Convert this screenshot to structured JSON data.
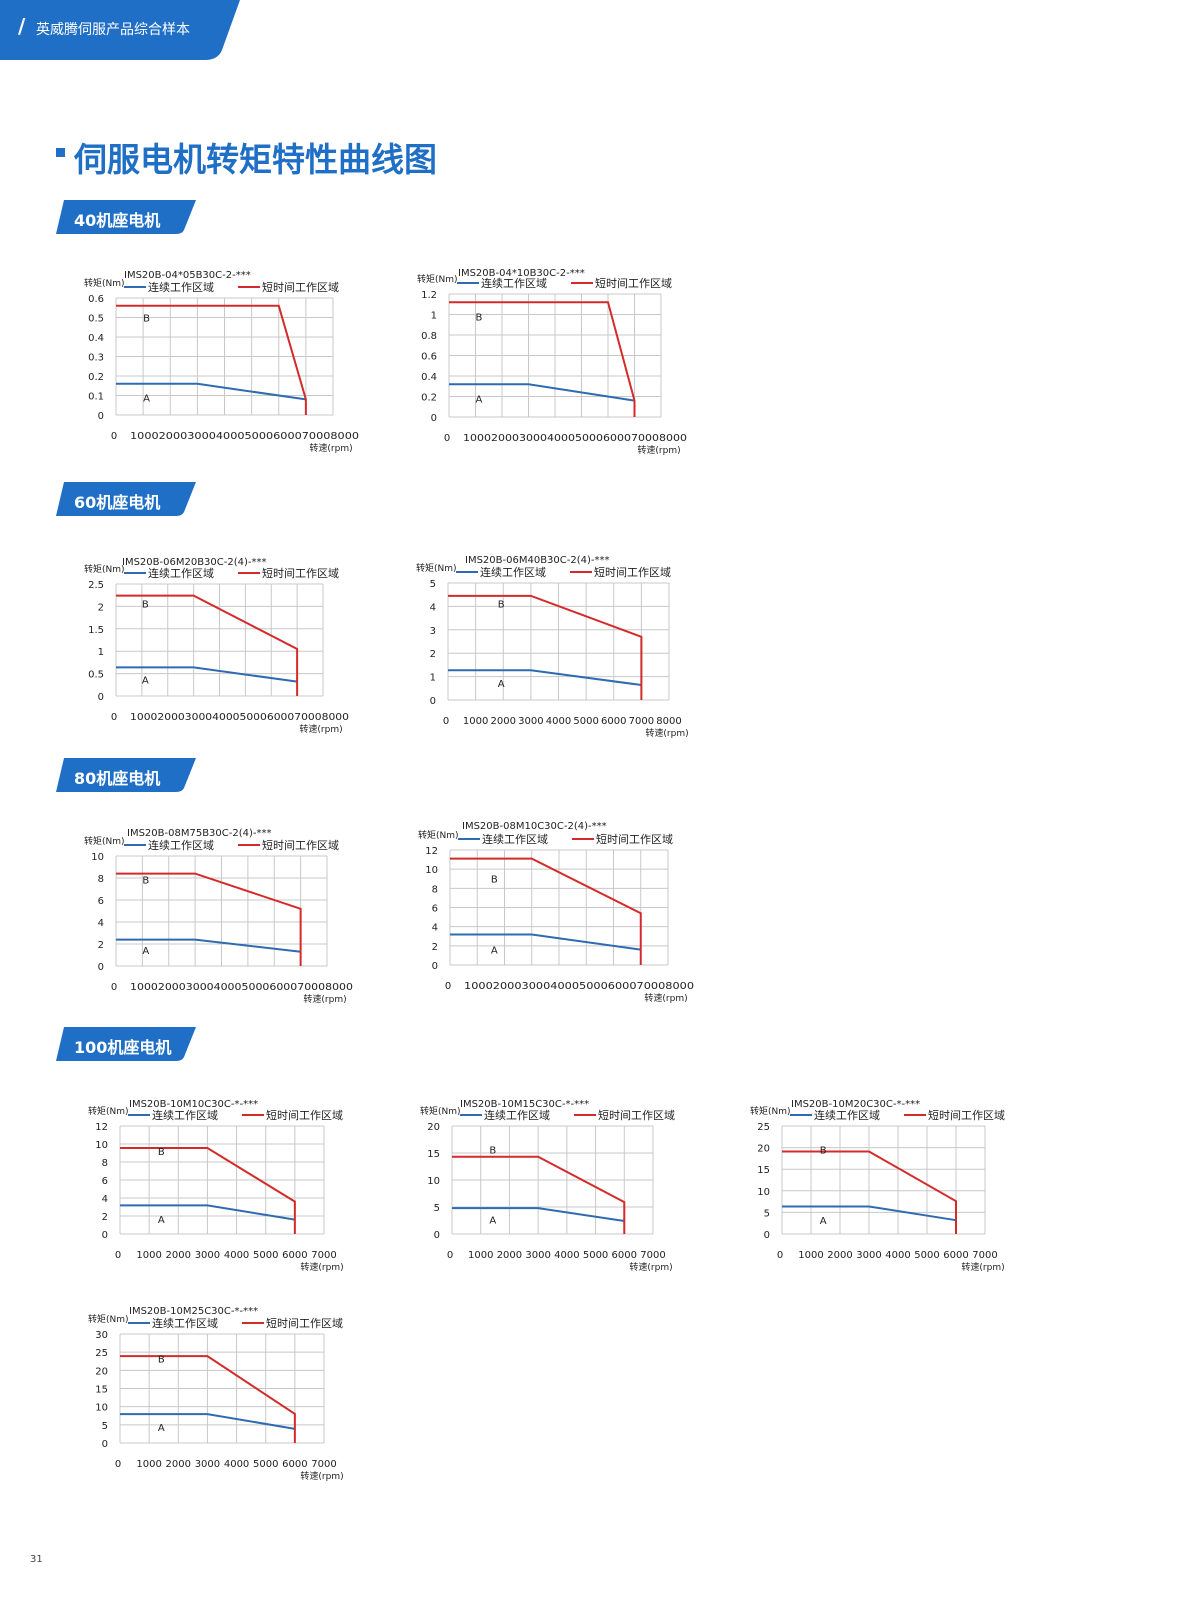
{
  "header": {
    "text": "英威腾伺服产品综合样本",
    "color": "#1f6fc6"
  },
  "page_title": "伺服电机转矩特性曲线图",
  "sections": [
    {
      "id": "s40",
      "label": "40机座电机"
    },
    {
      "id": "s60",
      "label": "60机座电机"
    },
    {
      "id": "s80",
      "label": "80机座电机"
    },
    {
      "id": "s100",
      "label": "100机座电机"
    }
  ],
  "page_number": "31",
  "colors": {
    "continuous": "#2e6bb0",
    "short": "#d42a2a",
    "grid": "#c8c8c8"
  },
  "chart_data": [
    {
      "type": "line",
      "title": "IMS20B-04*05B30C-2-***",
      "ylabel": "转矩(Nm)",
      "xlabel": "转速(rpm)",
      "legend": [
        "连续工作区域",
        "短时间工作区域"
      ],
      "legend_position": "top",
      "region_labels": [
        "A",
        "B"
      ],
      "xlim": [
        0,
        8000
      ],
      "ylim": [
        0,
        0.6
      ],
      "yticks": [
        0,
        0.1,
        0.2,
        0.3,
        0.4,
        0.5,
        0.6
      ],
      "ytick_labels": [
        "0",
        "0.1",
        "0.2",
        "0.3",
        "0.4",
        "0.5",
        "0.6"
      ],
      "xtick_labels": [
        "0",
        "1000",
        "2000",
        "3000",
        "4000",
        "5000",
        "6000",
        "7000",
        "8000"
      ],
      "xtick_style": "compact",
      "series": [
        {
          "name": "连续工作区域",
          "x": [
            0,
            3000,
            7000
          ],
          "y": [
            0.16,
            0.16,
            0.08
          ]
        },
        {
          "name": "短时间工作区域",
          "x": [
            0,
            6000,
            7000,
            7000
          ],
          "y": [
            0.56,
            0.56,
            0.08,
            0
          ]
        }
      ],
      "labelA": [
        1000,
        0.07
      ],
      "labelB": [
        1000,
        0.48
      ]
    },
    {
      "type": "line",
      "title": "IMS20B-04*10B30C-2-***",
      "ylabel": "转矩(Nm)",
      "xlabel": "转速(rpm)",
      "legend": [
        "连续工作区域",
        "短时间工作区域"
      ],
      "legend_position": "top",
      "region_labels": [
        "A",
        "B"
      ],
      "xlim": [
        0,
        8000
      ],
      "ylim": [
        0,
        1.2
      ],
      "yticks": [
        0,
        0.2,
        0.4,
        0.6,
        0.8,
        1,
        1.2
      ],
      "ytick_labels": [
        "0",
        "0.2",
        "0.4",
        "0.6",
        "0.8",
        "1",
        "1.2"
      ],
      "xtick_labels": [
        "0",
        "1000",
        "2000",
        "3000",
        "4000",
        "5000",
        "6000",
        "7000",
        "8000"
      ],
      "xtick_style": "compact",
      "series": [
        {
          "name": "连续工作区域",
          "x": [
            0,
            3000,
            7000
          ],
          "y": [
            0.32,
            0.32,
            0.16
          ]
        },
        {
          "name": "短时间工作区域",
          "x": [
            0,
            6000,
            7000,
            7000
          ],
          "y": [
            1.12,
            1.12,
            0.16,
            0
          ]
        }
      ],
      "labelA": [
        1000,
        0.14
      ],
      "labelB": [
        1000,
        0.94
      ]
    },
    {
      "type": "line",
      "title": "IMS20B-06M20B30C-2(4)-***",
      "ylabel": "转矩(Nm)",
      "xlabel": "转速(rpm)",
      "legend": [
        "连续工作区域",
        "短时间工作区域"
      ],
      "legend_position": "top",
      "region_labels": [
        "A",
        "B"
      ],
      "xlim": [
        0,
        8000
      ],
      "ylim": [
        0,
        2.5
      ],
      "yticks": [
        0,
        0.5,
        1,
        1.5,
        2,
        2.5
      ],
      "ytick_labels": [
        "0",
        "0.5",
        "1",
        "1.5",
        "2",
        "2.5"
      ],
      "xtick_labels": [
        "0",
        "1000",
        "2000",
        "3000",
        "4000",
        "5000",
        "6000",
        "7000",
        "8000"
      ],
      "xtick_style": "compact",
      "series": [
        {
          "name": "连续工作区域",
          "x": [
            0,
            3000,
            7000
          ],
          "y": [
            0.64,
            0.64,
            0.32
          ]
        },
        {
          "name": "短时间工作区域",
          "x": [
            0,
            3000,
            7000,
            7000
          ],
          "y": [
            2.24,
            2.24,
            1.05,
            0
          ]
        }
      ],
      "labelA": [
        1000,
        0.28
      ],
      "labelB": [
        1000,
        1.98
      ]
    },
    {
      "type": "line",
      "title": "IMS20B-06M40B30C-2(4)-***",
      "ylabel": "转矩(Nm)",
      "xlabel": "转速(rpm)",
      "legend": [
        "连续工作区域",
        "短时间工作区域"
      ],
      "legend_position": "top",
      "region_labels": [
        "A",
        "B"
      ],
      "xlim": [
        0,
        8000
      ],
      "ylim": [
        0,
        5
      ],
      "yticks": [
        0,
        1,
        2,
        3,
        4,
        5
      ],
      "ytick_labels": [
        "0",
        "1",
        "2",
        "3",
        "4",
        "5"
      ],
      "xtick_labels": [
        "0",
        "1000",
        "2000",
        "3000",
        "4000",
        "5000",
        "6000",
        "7000",
        "8000"
      ],
      "xtick_style": "spaced",
      "series": [
        {
          "name": "连续工作区域",
          "x": [
            0,
            3000,
            7000
          ],
          "y": [
            1.27,
            1.27,
            0.64
          ]
        },
        {
          "name": "短时间工作区域",
          "x": [
            0,
            3000,
            7000,
            7000
          ],
          "y": [
            4.45,
            4.45,
            2.7,
            0
          ]
        }
      ],
      "labelA": [
        1800,
        0.55
      ],
      "labelB": [
        1800,
        3.95
      ]
    },
    {
      "type": "line",
      "title": "IMS20B-08M75B30C-2(4)-***",
      "ylabel": "转矩(Nm)",
      "xlabel": "转速(rpm)",
      "legend": [
        "连续工作区域",
        "短时间工作区域"
      ],
      "legend_position": "top",
      "region_labels": [
        "A",
        "B"
      ],
      "xlim": [
        0,
        8000
      ],
      "ylim": [
        0,
        10
      ],
      "yticks": [
        0,
        2,
        4,
        6,
        8,
        10
      ],
      "ytick_labels": [
        "0",
        "2",
        "4",
        "6",
        "8",
        "10"
      ],
      "xtick_labels": [
        "0",
        "1000",
        "2000",
        "3000",
        "4000",
        "5000",
        "6000",
        "7000",
        "8000"
      ],
      "xtick_style": "compact",
      "series": [
        {
          "name": "连续工作区域",
          "x": [
            0,
            3000,
            7000
          ],
          "y": [
            2.4,
            2.4,
            1.3
          ]
        },
        {
          "name": "短时间工作区域",
          "x": [
            0,
            3000,
            7000,
            7000
          ],
          "y": [
            8.4,
            8.4,
            5.2,
            0
          ]
        }
      ],
      "labelA": [
        1000,
        1.1
      ],
      "labelB": [
        1000,
        7.5
      ]
    },
    {
      "type": "line",
      "title": "IMS20B-08M10C30C-2(4)-***",
      "ylabel": "转矩(Nm)",
      "xlabel": "转速(rpm)",
      "legend": [
        "连续工作区域",
        "短时间工作区域"
      ],
      "legend_position": "top",
      "region_labels": [
        "A",
        "B"
      ],
      "xlim": [
        0,
        8000
      ],
      "ylim": [
        0,
        12
      ],
      "yticks": [
        0,
        2,
        4,
        6,
        8,
        10,
        12
      ],
      "ytick_labels": [
        "0",
        "2",
        "4",
        "6",
        "8",
        "10",
        "12"
      ],
      "xtick_labels": [
        "0",
        "1000",
        "2000",
        "3000",
        "4000",
        "5000",
        "6000",
        "7000",
        "8000"
      ],
      "xtick_style": "compact",
      "series": [
        {
          "name": "连续工作区域",
          "x": [
            0,
            3000,
            7000
          ],
          "y": [
            3.18,
            3.18,
            1.6
          ]
        },
        {
          "name": "短时间工作区域",
          "x": [
            0,
            3000,
            7000,
            7000
          ],
          "y": [
            11.1,
            11.1,
            5.4,
            0
          ]
        }
      ],
      "labelA": [
        1500,
        1.2
      ],
      "labelB": [
        1500,
        8.6
      ]
    },
    {
      "type": "line",
      "title": "IMS20B-10M10C30C-*-***",
      "ylabel": "转矩(Nm)",
      "xlabel": "转速(rpm)",
      "legend": [
        "连续工作区域",
        "短时间工作区域"
      ],
      "legend_position": "top",
      "region_labels": [
        "A",
        "B"
      ],
      "xlim": [
        0,
        7000
      ],
      "ylim": [
        0,
        12
      ],
      "yticks": [
        0,
        2,
        4,
        6,
        8,
        10,
        12
      ],
      "ytick_labels": [
        "0",
        "2",
        "4",
        "6",
        "8",
        "10",
        "12"
      ],
      "xtick_labels": [
        "0",
        "1000",
        "2000",
        "3000",
        "4000",
        "5000",
        "6000",
        "7000"
      ],
      "xtick_style": "spaced",
      "series": [
        {
          "name": "连续工作区域",
          "x": [
            0,
            3000,
            6000
          ],
          "y": [
            3.18,
            3.18,
            1.6
          ]
        },
        {
          "name": "短时间工作区域",
          "x": [
            0,
            3000,
            6000,
            6000
          ],
          "y": [
            9.55,
            9.55,
            3.6,
            0
          ]
        }
      ],
      "labelA": [
        1300,
        1.2
      ],
      "labelB": [
        1300,
        8.8
      ]
    },
    {
      "type": "line",
      "title": "IMS20B-10M15C30C-*-***",
      "ylabel": "转矩(Nm)",
      "xlabel": "转速(rpm)",
      "legend": [
        "连续工作区域",
        "短时间工作区域"
      ],
      "legend_position": "top",
      "region_labels": [
        "A",
        "B"
      ],
      "xlim": [
        0,
        7000
      ],
      "ylim": [
        0,
        20
      ],
      "yticks": [
        0,
        5,
        10,
        15,
        20
      ],
      "ytick_labels": [
        "0",
        "5",
        "10",
        "15",
        "20"
      ],
      "xtick_labels": [
        "0",
        "1000",
        "2000",
        "3000",
        "4000",
        "5000",
        "6000",
        "7000"
      ],
      "xtick_style": "spaced",
      "series": [
        {
          "name": "连续工作区域",
          "x": [
            0,
            3000,
            6000
          ],
          "y": [
            4.8,
            4.8,
            2.4
          ]
        },
        {
          "name": "短时间工作区域",
          "x": [
            0,
            3000,
            6000,
            6000
          ],
          "y": [
            14.3,
            14.3,
            5.9,
            0
          ]
        }
      ],
      "labelA": [
        1300,
        1.9
      ],
      "labelB": [
        1300,
        14.9
      ]
    },
    {
      "type": "line",
      "title": "IMS20B-10M20C30C-*-***",
      "ylabel": "转矩(Nm)",
      "xlabel": "转速(rpm)",
      "legend": [
        "连续工作区域",
        "短时间工作区域"
      ],
      "legend_position": "top",
      "region_labels": [
        "A",
        "B"
      ],
      "xlim": [
        0,
        7000
      ],
      "ylim": [
        0,
        25
      ],
      "yticks": [
        0,
        5,
        10,
        15,
        20,
        25
      ],
      "ytick_labels": [
        "0",
        "5",
        "10",
        "15",
        "20",
        "25"
      ],
      "xtick_labels": [
        "0",
        "1000",
        "2000",
        "3000",
        "4000",
        "5000",
        "6000",
        "7000"
      ],
      "xtick_style": "spaced",
      "series": [
        {
          "name": "连续工作区域",
          "x": [
            0,
            3000,
            6000
          ],
          "y": [
            6.37,
            6.37,
            3.2
          ]
        },
        {
          "name": "短时间工作区域",
          "x": [
            0,
            3000,
            6000,
            6000
          ],
          "y": [
            19.1,
            19.1,
            7.6,
            0
          ]
        }
      ],
      "labelA": [
        1300,
        2.3
      ],
      "labelB": [
        1300,
        18.6
      ]
    },
    {
      "type": "line",
      "title": "IMS20B-10M25C30C-*-***",
      "ylabel": "转矩(Nm)",
      "xlabel": "转速(rpm)",
      "legend": [
        "连续工作区域",
        "短时间工作区域"
      ],
      "legend_position": "top",
      "region_labels": [
        "A",
        "B"
      ],
      "xlim": [
        0,
        7000
      ],
      "ylim": [
        0,
        30
      ],
      "yticks": [
        0,
        5,
        10,
        15,
        20,
        25,
        30
      ],
      "ytick_labels": [
        "0",
        "5",
        "10",
        "15",
        "20",
        "25",
        "30"
      ],
      "xtick_labels": [
        "0",
        "1000",
        "2000",
        "3000",
        "4000",
        "5000",
        "6000",
        "7000"
      ],
      "xtick_style": "spaced",
      "series": [
        {
          "name": "连续工作区域",
          "x": [
            0,
            3000,
            6000
          ],
          "y": [
            7.96,
            7.96,
            3.9
          ]
        },
        {
          "name": "短时间工作区域",
          "x": [
            0,
            3000,
            6000,
            6000
          ],
          "y": [
            23.9,
            23.9,
            8,
            0
          ]
        }
      ],
      "labelA": [
        1300,
        3.3
      ],
      "labelB": [
        1300,
        22.2
      ]
    }
  ]
}
